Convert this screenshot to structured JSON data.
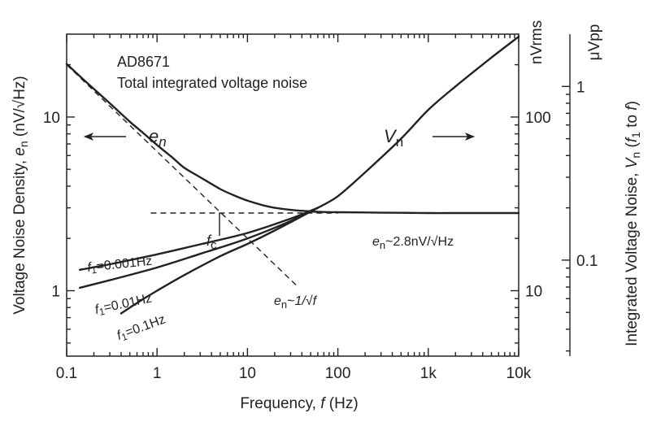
{
  "chart_data": {
    "type": "line",
    "title": "AD8671",
    "subtitle": "Total integrated voltage noise",
    "xlabel": "Frequency, f (Hz)",
    "ylabel_left": "Voltage Noise Density, en (nV/√Hz)",
    "ylabel_right": "Integrated Voltage Noise, Vn (f1 to f)",
    "x_scale": "log",
    "y_scale": "log",
    "xlim": [
      0.1,
      10000
    ],
    "ylim_left": [
      0.42,
      30
    ],
    "x_ticks": [
      {
        "value": 0.1,
        "label": "0.1"
      },
      {
        "value": 1,
        "label": "1"
      },
      {
        "value": 10,
        "label": "10"
      },
      {
        "value": 100,
        "label": "100"
      },
      {
        "value": 1000,
        "label": "1k"
      },
      {
        "value": 10000,
        "label": "10k"
      }
    ],
    "y_left_ticks": [
      {
        "value": 1,
        "label": "1"
      },
      {
        "value": 10,
        "label": "10"
      }
    ],
    "y_right_nvrms": {
      "unit": "nVrms",
      "range": [
        4.2,
        300
      ],
      "ticks": [
        {
          "value": 10,
          "label": "10"
        },
        {
          "value": 100,
          "label": "100"
        }
      ]
    },
    "y_right_uvpp": {
      "unit": "μVpp",
      "range": [
        0.028,
        2.0
      ],
      "ticks": [
        {
          "value": 0.1,
          "label": "0.1"
        },
        {
          "value": 1,
          "label": "1"
        }
      ]
    },
    "series": [
      {
        "name": "en",
        "axis": "left",
        "style": "solid",
        "x": [
          0.1,
          0.15,
          0.2,
          0.3,
          0.5,
          0.7,
          1,
          1.5,
          2,
          3,
          5,
          7,
          10,
          15,
          20,
          30,
          50,
          70,
          100,
          200,
          500,
          1000,
          2000,
          5000,
          10000
        ],
        "y": [
          20.2,
          16.6,
          14.5,
          12.0,
          9.4,
          8.1,
          6.9,
          5.8,
          5.1,
          4.5,
          3.85,
          3.55,
          3.3,
          3.1,
          3.0,
          2.92,
          2.86,
          2.84,
          2.83,
          2.82,
          2.81,
          2.8,
          2.8,
          2.8,
          2.8
        ]
      },
      {
        "name": "Vn",
        "axis": "right_nvrms",
        "style": "solid",
        "x": [
          60,
          100,
          200,
          500,
          1000,
          2000,
          5000,
          10000
        ],
        "y": [
          30,
          35,
          48,
          75,
          110,
          150,
          220,
          290
        ]
      },
      {
        "name": "f1=0.001Hz",
        "axis": "right_nvrms",
        "style": "solid",
        "x": [
          0.14,
          0.3,
          1,
          3,
          10,
          30,
          60
        ],
        "y": [
          13.2,
          14.2,
          16.2,
          18.5,
          21.5,
          26.0,
          30.0
        ]
      },
      {
        "name": "f1=0.01Hz",
        "axis": "right_nvrms",
        "style": "solid",
        "x": [
          0.14,
          0.3,
          1,
          3,
          10,
          30,
          60
        ],
        "y": [
          10.4,
          11.5,
          13.6,
          16.3,
          20.0,
          25.2,
          30.0
        ]
      },
      {
        "name": "f1=0.1Hz",
        "axis": "right_nvrms",
        "style": "solid",
        "x": [
          0.4,
          0.6,
          1,
          2,
          5,
          10,
          20,
          60
        ],
        "y": [
          7.4,
          8.5,
          10.0,
          12.3,
          15.8,
          18.6,
          22.2,
          30.0
        ]
      },
      {
        "name": "en~1/√f",
        "axis": "left",
        "style": "dashed",
        "x": [
          0.1,
          35
        ],
        "y": [
          20,
          1.07
        ]
      },
      {
        "name": "en~2.8nV/√Hz",
        "axis": "left",
        "style": "dashed",
        "x": [
          0.85,
          100
        ],
        "y": [
          2.8,
          2.8
        ]
      }
    ],
    "annotations": {
      "en_label": "en",
      "vn_label": "Vn",
      "fc_label": "fc",
      "fc_value": 5,
      "flat_label": "en~2.8nV/√Hz",
      "slope_label": "en~1/√f",
      "f1_labels": [
        "f1=0.001Hz",
        "f1=0.01Hz",
        "f1=0.1Hz"
      ]
    },
    "grid": false,
    "legend": "none"
  }
}
